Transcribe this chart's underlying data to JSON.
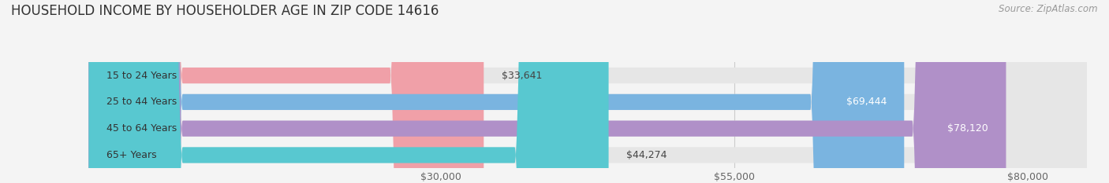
{
  "title": "HOUSEHOLD INCOME BY HOUSEHOLDER AGE IN ZIP CODE 14616",
  "source": "Source: ZipAtlas.com",
  "categories": [
    "15 to 24 Years",
    "25 to 44 Years",
    "45 to 64 Years",
    "65+ Years"
  ],
  "values": [
    33641,
    69444,
    78120,
    44274
  ],
  "bar_colors": [
    "#f0a0a8",
    "#7ab4e0",
    "#b090c8",
    "#58c8d0"
  ],
  "value_labels": [
    "$33,641",
    "$69,444",
    "$78,120",
    "$44,274"
  ],
  "value_inside": [
    false,
    true,
    true,
    false
  ],
  "x_ticks": [
    30000,
    55000,
    80000
  ],
  "x_tick_labels": [
    "$30,000",
    "$55,000",
    "$80,000"
  ],
  "xlim_max": 85000,
  "figsize": [
    14.06,
    2.33
  ],
  "dpi": 100,
  "background_color": "#f4f4f4",
  "bar_bg_color": "#e6e6e6",
  "title_fontsize": 12,
  "source_fontsize": 8.5,
  "label_fontsize": 9,
  "tick_fontsize": 9
}
